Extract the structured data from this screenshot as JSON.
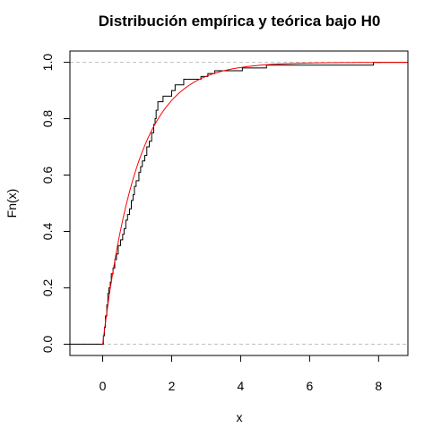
{
  "chart_data": {
    "type": "line",
    "title": "Distribución empírica y teórica bajo H0",
    "xlabel": "x",
    "ylabel": "Fn(x)",
    "xlim": [
      -0.95,
      8.85
    ],
    "ylim": [
      -0.04,
      1.04
    ],
    "x_ticks": [
      0,
      2,
      4,
      6,
      8
    ],
    "x_tick_labels": [
      "0",
      "2",
      "4",
      "6",
      "8"
    ],
    "y_ticks": [
      0.0,
      0.2,
      0.4,
      0.6,
      0.8,
      1.0
    ],
    "y_tick_labels": [
      "0.0",
      "0.2",
      "0.4",
      "0.6",
      "0.8",
      "1.0"
    ],
    "reference_lines": {
      "y": [
        0,
        1
      ],
      "color": "#bebebe",
      "style": "dashed"
    },
    "series": [
      {
        "kind": "ecdf-step",
        "color": "#000000",
        "x_start": -0.95,
        "x_end": 8.85,
        "points": [
          [
            0.0,
            0.0
          ],
          [
            0.02,
            0.03
          ],
          [
            0.05,
            0.06
          ],
          [
            0.08,
            0.1
          ],
          [
            0.12,
            0.14
          ],
          [
            0.15,
            0.18
          ],
          [
            0.18,
            0.2
          ],
          [
            0.22,
            0.22
          ],
          [
            0.25,
            0.25
          ],
          [
            0.3,
            0.27
          ],
          [
            0.35,
            0.3
          ],
          [
            0.4,
            0.32
          ],
          [
            0.45,
            0.35
          ],
          [
            0.52,
            0.37
          ],
          [
            0.58,
            0.39
          ],
          [
            0.62,
            0.41
          ],
          [
            0.67,
            0.44
          ],
          [
            0.72,
            0.46
          ],
          [
            0.78,
            0.48
          ],
          [
            0.83,
            0.51
          ],
          [
            0.88,
            0.53
          ],
          [
            0.92,
            0.56
          ],
          [
            0.97,
            0.58
          ],
          [
            1.05,
            0.61
          ],
          [
            1.1,
            0.63
          ],
          [
            1.15,
            0.65
          ],
          [
            1.22,
            0.67
          ],
          [
            1.28,
            0.7
          ],
          [
            1.35,
            0.72
          ],
          [
            1.42,
            0.75
          ],
          [
            1.48,
            0.78
          ],
          [
            1.52,
            0.8
          ],
          [
            1.55,
            0.83
          ],
          [
            1.6,
            0.86
          ],
          [
            1.75,
            0.88
          ],
          [
            2.0,
            0.9
          ],
          [
            2.1,
            0.92
          ],
          [
            2.35,
            0.94
          ],
          [
            2.85,
            0.95
          ],
          [
            3.05,
            0.96
          ],
          [
            3.25,
            0.97
          ],
          [
            4.05,
            0.98
          ],
          [
            4.75,
            0.99
          ],
          [
            7.85,
            1.0
          ]
        ]
      },
      {
        "kind": "function",
        "name": "1 - exp(-x)",
        "color": "#ff0000",
        "x_from": 0,
        "x_to": 8.85
      }
    ]
  }
}
